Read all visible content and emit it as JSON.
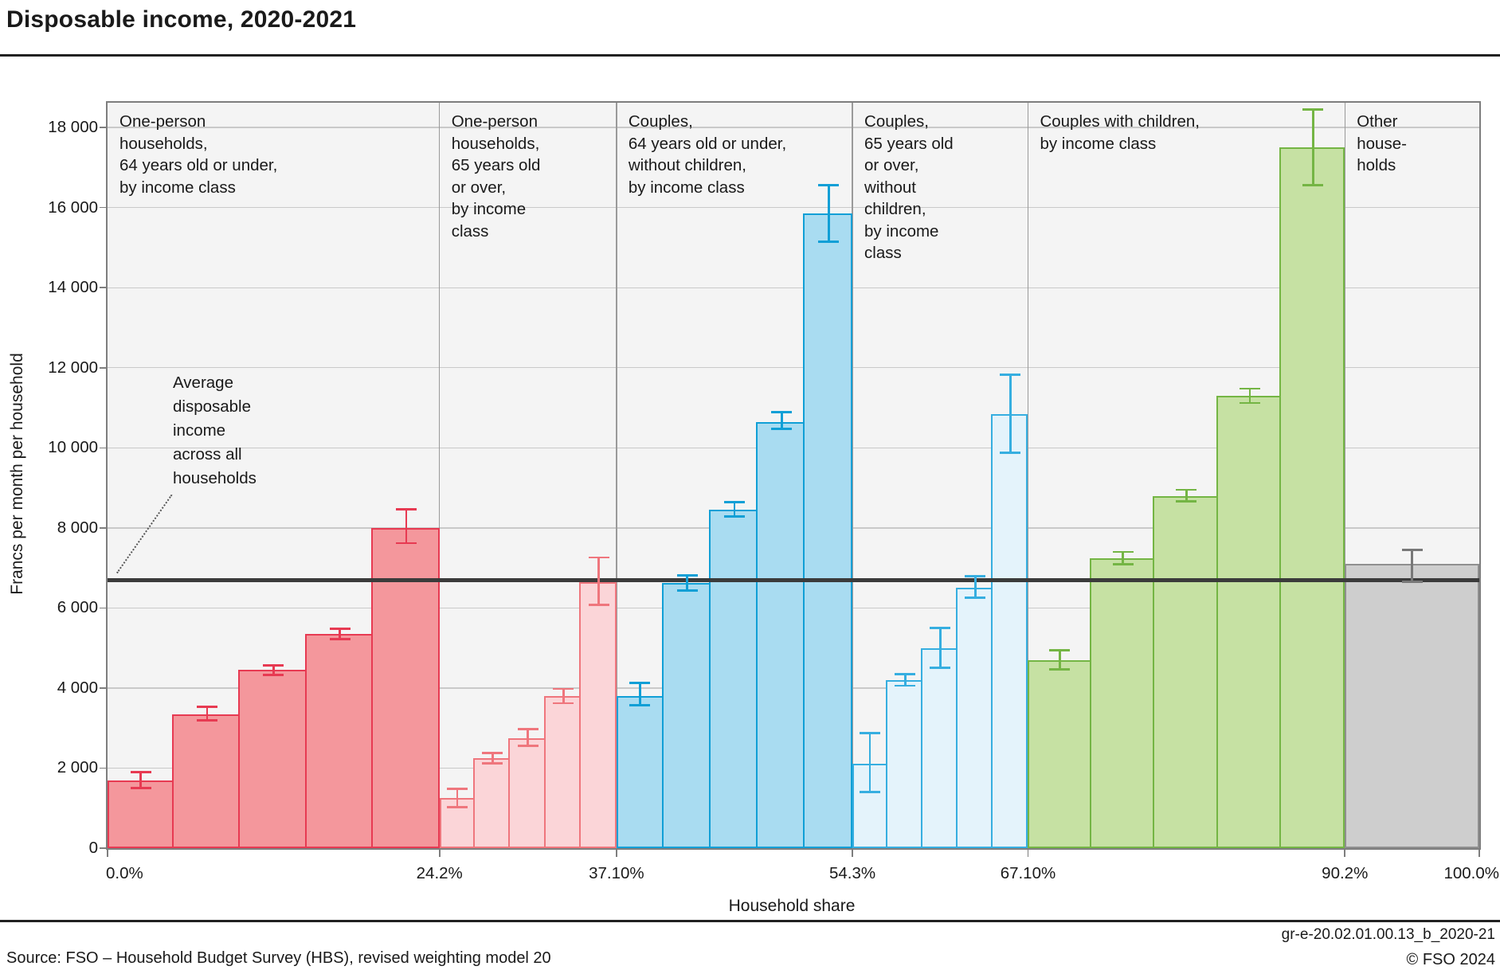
{
  "title": "Disposable income, 2020-2021",
  "y_axis": {
    "label": "Francs per month per household",
    "tick_labels": [
      "0",
      "2 000",
      "4 000",
      "6 000",
      "8 000",
      "10 000",
      "12 000",
      "14 000",
      "16 000",
      "18 000"
    ]
  },
  "x_axis": {
    "label": "Household share",
    "tick_labels": [
      "0.0%",
      "24.2%",
      "37.10%",
      "54.3%",
      "67.10%",
      "90.2%",
      "100.0%"
    ]
  },
  "annotation": {
    "lines": [
      "Average",
      "disposable",
      "income",
      "across all",
      "households"
    ]
  },
  "footer": {
    "figure_id": "gr-e-20.02.01.00.13_b_2020-21",
    "source": "Source: FSO – Household Budget Survey (HBS), revised weighting model 20",
    "copyright": "© FSO 2024"
  },
  "colors": {
    "plot_background": "#f4f4f4",
    "gridline": "#c9c9c9",
    "separator": "#9a9a9a",
    "plot_border": "#7e7e7e",
    "average_line": "#3b3b3b"
  },
  "chart_data": {
    "type": "bar",
    "title": "Disposable income, 2020-2021",
    "xlabel": "Household share",
    "ylabel": "Francs per month per household",
    "ylim": [
      0,
      18620
    ],
    "grid": true,
    "average_line_value": 6700,
    "x_boundaries_pct": [
      0,
      24.2,
      37.1,
      54.3,
      67.1,
      90.2,
      100
    ],
    "groups": [
      {
        "name": "one-person-households-64-or-under",
        "label_lines": [
          "One-person",
          "households,",
          "64 years old or under,",
          "by income class"
        ],
        "start_pct": 0,
        "end_pct": 24.2,
        "fill": "#f4979c",
        "stroke": "#e73a52",
        "bars": [
          {
            "value": 1700,
            "err_low": 1500,
            "err_high": 1900
          },
          {
            "value": 3350,
            "err_low": 3200,
            "err_high": 3530
          },
          {
            "value": 4450,
            "err_low": 4330,
            "err_high": 4570
          },
          {
            "value": 5350,
            "err_low": 5220,
            "err_high": 5480
          },
          {
            "value": 8000,
            "err_low": 7620,
            "err_high": 8470
          }
        ]
      },
      {
        "name": "one-person-households-65-or-over",
        "label_lines": [
          "One-person",
          "households,",
          "65 years old",
          "or over,",
          "by income",
          "class"
        ],
        "start_pct": 24.2,
        "end_pct": 37.1,
        "fill": "#fbd5d8",
        "stroke": "#ef767d",
        "bars": [
          {
            "value": 1250,
            "err_low": 1020,
            "err_high": 1480
          },
          {
            "value": 2250,
            "err_low": 2120,
            "err_high": 2380
          },
          {
            "value": 2750,
            "err_low": 2550,
            "err_high": 2980
          },
          {
            "value": 3800,
            "err_low": 3620,
            "err_high": 3980
          },
          {
            "value": 6650,
            "err_low": 6080,
            "err_high": 7260
          }
        ]
      },
      {
        "name": "couples-64-or-under-without-children",
        "label_lines": [
          "Couples,",
          "64 years old or under,",
          "without children,",
          "by income class"
        ],
        "start_pct": 37.1,
        "end_pct": 54.3,
        "fill": "#a9dcf1",
        "stroke": "#109fd6",
        "bars": [
          {
            "value": 3800,
            "err_low": 3570,
            "err_high": 4120
          },
          {
            "value": 6620,
            "err_low": 6430,
            "err_high": 6820
          },
          {
            "value": 8450,
            "err_low": 8290,
            "err_high": 8640
          },
          {
            "value": 10650,
            "err_low": 10470,
            "err_high": 10890
          },
          {
            "value": 15850,
            "err_low": 15150,
            "err_high": 16560
          }
        ]
      },
      {
        "name": "couples-65-or-over-without-children",
        "label_lines": [
          "Couples,",
          "65 years old",
          "or over,",
          "without",
          "children,",
          "by income",
          "class"
        ],
        "start_pct": 54.3,
        "end_pct": 67.1,
        "fill": "#e4f3fb",
        "stroke": "#36aee0",
        "bars": [
          {
            "value": 2100,
            "err_low": 1400,
            "err_high": 2870
          },
          {
            "value": 4200,
            "err_low": 4060,
            "err_high": 4350
          },
          {
            "value": 5000,
            "err_low": 4510,
            "err_high": 5500
          },
          {
            "value": 6500,
            "err_low": 6260,
            "err_high": 6800
          },
          {
            "value": 10850,
            "err_low": 9870,
            "err_high": 11830
          }
        ]
      },
      {
        "name": "couples-with-children",
        "label_lines": [
          "Couples with children,",
          "by income class"
        ],
        "start_pct": 67.1,
        "end_pct": 90.2,
        "fill": "#c6e1a3",
        "stroke": "#74b544",
        "bars": [
          {
            "value": 4700,
            "err_low": 4470,
            "err_high": 4950
          },
          {
            "value": 7250,
            "err_low": 7090,
            "err_high": 7400
          },
          {
            "value": 8800,
            "err_low": 8660,
            "err_high": 8950
          },
          {
            "value": 11300,
            "err_low": 11120,
            "err_high": 11480
          },
          {
            "value": 17500,
            "err_low": 16560,
            "err_high": 18450
          }
        ]
      },
      {
        "name": "other-households",
        "label_lines": [
          "Other",
          "house-",
          "holds"
        ],
        "start_pct": 90.2,
        "end_pct": 100,
        "fill": "#cecece",
        "stroke": "#8f8f8f",
        "err_color": "#787878",
        "bars": [
          {
            "value": 7100,
            "err_low": 6650,
            "err_high": 7450
          }
        ]
      }
    ]
  }
}
